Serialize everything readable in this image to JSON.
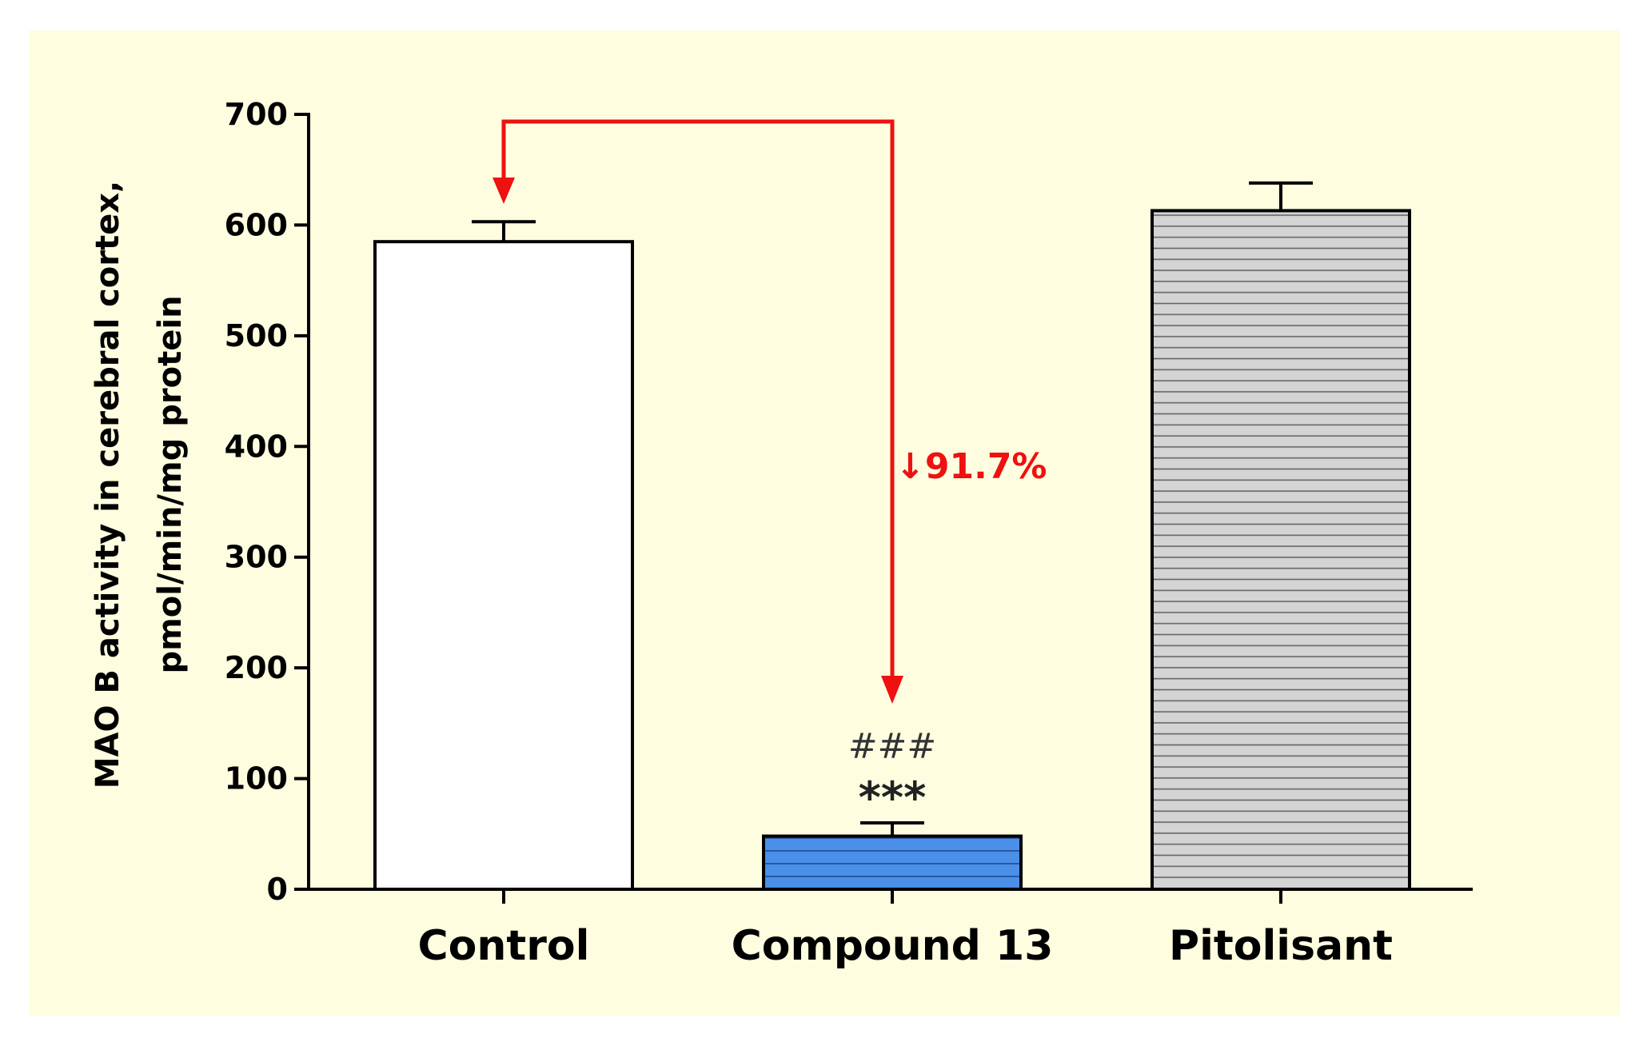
{
  "chart_data": {
    "type": "bar",
    "title": "",
    "xlabel": "",
    "ylabel_lines": [
      "MAO B activity in cerebral cortex,",
      "pmol/min/mg protein"
    ],
    "categories": [
      "Control",
      "Compound 13",
      "Pitolisant"
    ],
    "values": [
      585,
      48,
      613
    ],
    "errors": [
      18,
      12,
      25
    ],
    "ylim": [
      0,
      700
    ],
    "yticks": [
      "0",
      "100",
      "200",
      "300",
      "400",
      "500",
      "600",
      "700"
    ],
    "grid": false,
    "annotations": {
      "reduction": "↓91.7%",
      "hash": "###",
      "stars": "***"
    },
    "colors": {
      "background": "#fffde0",
      "control_fill": "#ffffff",
      "compound_fill": "#4a90e8",
      "pitolisant_fill": "#d4d4d4",
      "annotation_red": "#ee1111"
    }
  }
}
